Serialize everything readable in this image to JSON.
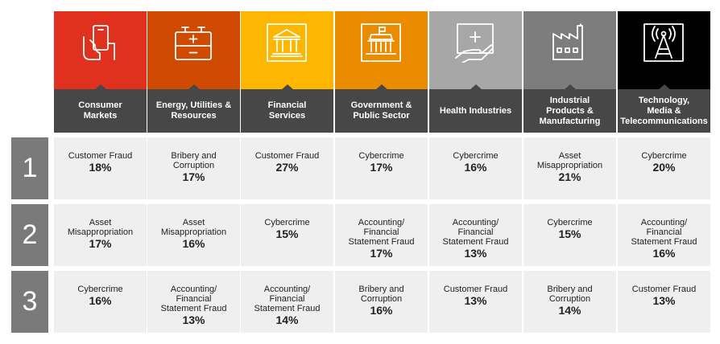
{
  "columns": [
    {
      "label": "Consumer\nMarkets",
      "color": "#e0301e",
      "icon": "phone-hand-icon"
    },
    {
      "label": "Energy, Utilities &\nResources",
      "color": "#d04a02",
      "icon": "battery-icon"
    },
    {
      "label": "Financial\nServices",
      "color": "#ffb600",
      "icon": "bank-icon"
    },
    {
      "label": "Government &\nPublic Sector",
      "color": "#eb8c00",
      "icon": "government-building-icon"
    },
    {
      "label": "Health Industries",
      "color": "#a7a7a7",
      "icon": "health-hand-icon"
    },
    {
      "label": "Industrial\nProducts &\nManufacturing",
      "color": "#7d7d7d",
      "icon": "factory-icon"
    },
    {
      "label": "Technology,\nMedia &\nTelecommunications",
      "color": "#000000",
      "icon": "antenna-tower-icon"
    }
  ],
  "ranks": [
    "1",
    "2",
    "3"
  ],
  "cells": [
    [
      {
        "text": "Customer Fraud",
        "pct": "18%"
      },
      {
        "text": "Bribery and\nCorruption",
        "pct": "17%"
      },
      {
        "text": "Customer Fraud",
        "pct": "27%"
      },
      {
        "text": "Cybercrime",
        "pct": "17%"
      },
      {
        "text": "Cybercrime",
        "pct": "16%"
      },
      {
        "text": "Asset\nMisappropriation",
        "pct": "21%"
      },
      {
        "text": "Cybercrime",
        "pct": "20%"
      }
    ],
    [
      {
        "text": "Asset\nMisappropriation",
        "pct": "17%"
      },
      {
        "text": "Asset\nMisappropriation",
        "pct": "16%"
      },
      {
        "text": "Cybercrime",
        "pct": "15%"
      },
      {
        "text": "Accounting/\nFinancial\nStatement Fraud",
        "pct": "17%"
      },
      {
        "text": "Accounting/\nFinancial\nStatement Fraud",
        "pct": "13%"
      },
      {
        "text": "Cybercrime",
        "pct": "15%"
      },
      {
        "text": "Accounting/\nFinancial\nStatement Fraud",
        "pct": "16%"
      }
    ],
    [
      {
        "text": "Cybercrime",
        "pct": "16%"
      },
      {
        "text": "Accounting/\nFinancial\nStatement Fraud",
        "pct": "13%"
      },
      {
        "text": "Accounting/\nFinancial\nStatement Fraud",
        "pct": "14%"
      },
      {
        "text": "Bribery and\nCorruption",
        "pct": "16%"
      },
      {
        "text": "Customer Fraud",
        "pct": "13%"
      },
      {
        "text": "Bribery and\nCorruption",
        "pct": "14%"
      },
      {
        "text": "Customer Fraud",
        "pct": "13%"
      }
    ]
  ]
}
